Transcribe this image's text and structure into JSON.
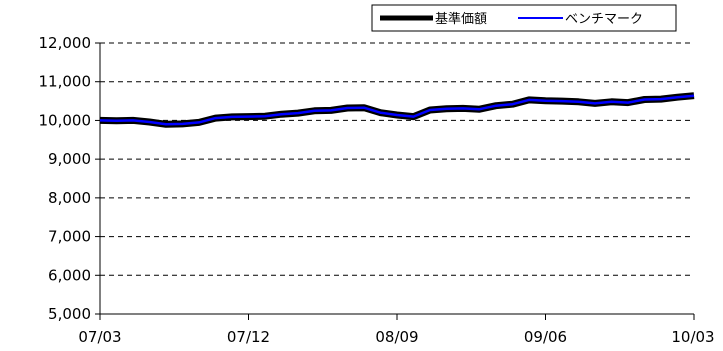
{
  "chart_data": {
    "type": "line",
    "title": "",
    "xlabel": "",
    "ylabel": "",
    "ylim": [
      5000,
      12000
    ],
    "yticks": [
      {
        "value": 5000,
        "label": "5,000"
      },
      {
        "value": 6000,
        "label": "6,000"
      },
      {
        "value": 7000,
        "label": "7,000"
      },
      {
        "value": 8000,
        "label": "8,000"
      },
      {
        "value": 9000,
        "label": "9,000"
      },
      {
        "value": 10000,
        "label": "10,000"
      },
      {
        "value": 11000,
        "label": "11,000"
      },
      {
        "value": 12000,
        "label": "12,000"
      }
    ],
    "xlim": [
      "2007-03",
      "2010-03"
    ],
    "xticks": [
      {
        "value": "2007-03",
        "label": "07/03"
      },
      {
        "value": "2007-12",
        "label": "07/12"
      },
      {
        "value": "2008-09",
        "label": "08/09"
      },
      {
        "value": "2009-06",
        "label": "09/06"
      },
      {
        "value": "2010-03",
        "label": "10/03"
      }
    ],
    "grid": "horizontal-dashed",
    "legend_position": "top-right",
    "x": [
      "2007-03",
      "2007-04",
      "2007-05",
      "2007-06",
      "2007-07",
      "2007-08",
      "2007-09",
      "2007-10",
      "2007-11",
      "2007-12",
      "2008-01",
      "2008-02",
      "2008-03",
      "2008-04",
      "2008-05",
      "2008-06",
      "2008-07",
      "2008-08",
      "2008-09",
      "2008-10",
      "2008-11",
      "2008-12",
      "2009-01",
      "2009-02",
      "2009-03",
      "2009-04",
      "2009-05",
      "2009-06",
      "2009-07",
      "2009-08",
      "2009-09",
      "2009-10",
      "2009-11",
      "2009-12",
      "2010-01",
      "2010-02",
      "2010-03"
    ],
    "series": [
      {
        "name": "基準価額",
        "color": "#000000",
        "values": [
          10000,
          9990,
          10000,
          9960,
          9900,
          9910,
          9950,
          10060,
          10090,
          10100,
          10110,
          10160,
          10190,
          10250,
          10260,
          10320,
          10330,
          10200,
          10140,
          10100,
          10270,
          10300,
          10310,
          10290,
          10380,
          10420,
          10530,
          10510,
          10500,
          10480,
          10440,
          10480,
          10460,
          10540,
          10550,
          10600,
          10640
        ]
      },
      {
        "name": "ベンチマーク",
        "color": "#0000ff",
        "values": [
          10000,
          9990,
          10000,
          9960,
          9900,
          9910,
          9950,
          10060,
          10090,
          10100,
          10110,
          10160,
          10190,
          10250,
          10260,
          10320,
          10330,
          10200,
          10140,
          10100,
          10270,
          10300,
          10310,
          10290,
          10380,
          10420,
          10530,
          10510,
          10500,
          10480,
          10440,
          10480,
          10460,
          10540,
          10550,
          10600,
          10640
        ]
      }
    ]
  }
}
